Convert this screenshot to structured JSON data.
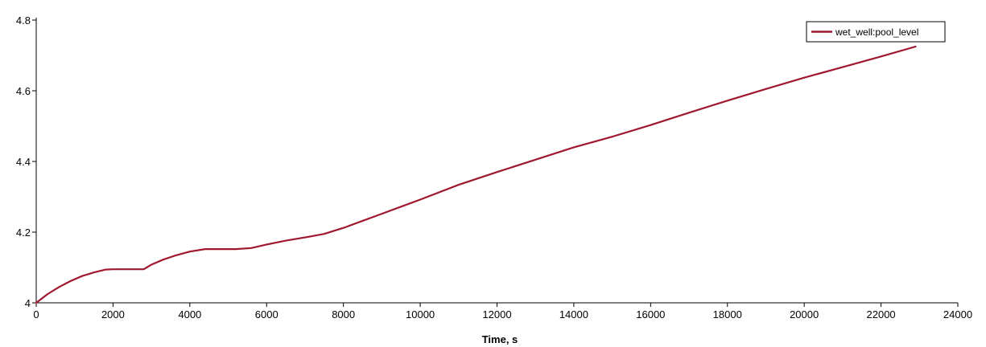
{
  "chart_data": {
    "type": "line",
    "title": "",
    "xlabel": "Time, s",
    "ylabel": "",
    "xlim": [
      0,
      24000
    ],
    "ylim": [
      4.0,
      4.8
    ],
    "x_ticks": [
      0,
      2000,
      4000,
      6000,
      8000,
      10000,
      12000,
      14000,
      16000,
      18000,
      20000,
      22000,
      24000
    ],
    "x_tick_labels": [
      "0",
      "2000",
      "4000",
      "6000",
      "8000",
      "10000",
      "12000",
      "14000",
      "16000",
      "18000",
      "20000",
      "22000",
      "24000"
    ],
    "y_ticks": [
      4.0,
      4.2,
      4.4,
      4.6,
      4.8
    ],
    "y_tick_labels": [
      "4",
      "4.2",
      "4.4",
      "4.6",
      "4.8"
    ],
    "grid": false,
    "legend_position": "top-right",
    "series": [
      {
        "name": "wet_well:pool_level",
        "color": "#a01830",
        "x": [
          0,
          300,
          600,
          900,
          1200,
          1500,
          1800,
          2000,
          2400,
          2800,
          3000,
          3300,
          3600,
          4000,
          4400,
          4800,
          5200,
          5600,
          6000,
          6500,
          7000,
          7500,
          8000,
          8500,
          9000,
          9500,
          10000,
          11000,
          12000,
          13000,
          14000,
          15000,
          16000,
          17000,
          18000,
          19000,
          20000,
          21000,
          22000,
          22900
        ],
        "y": [
          4.0,
          4.025,
          4.045,
          4.062,
          4.076,
          4.086,
          4.094,
          4.095,
          4.095,
          4.095,
          4.108,
          4.122,
          4.133,
          4.145,
          4.152,
          4.152,
          4.152,
          4.155,
          4.165,
          4.176,
          4.185,
          4.195,
          4.212,
          4.232,
          4.252,
          4.272,
          4.292,
          4.334,
          4.37,
          4.405,
          4.44,
          4.47,
          4.503,
          4.538,
          4.572,
          4.605,
          4.637,
          4.667,
          4.697,
          4.725
        ]
      }
    ]
  }
}
